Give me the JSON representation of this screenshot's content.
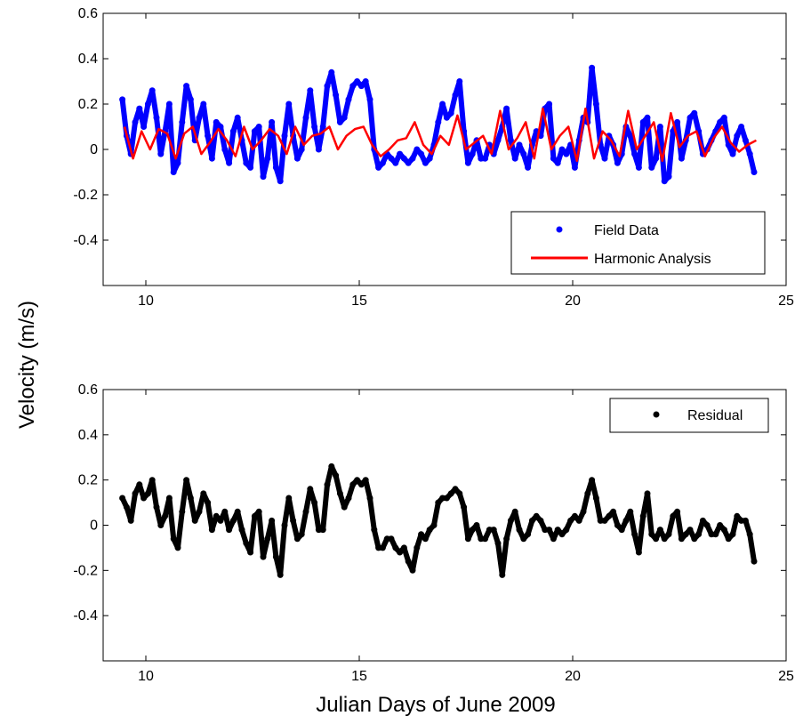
{
  "figure": {
    "ylabel": "Velocity (m/s)",
    "xlabel": "Julian Days of June 2009"
  },
  "chart_data": [
    {
      "type": "scatter",
      "xlim": [
        9,
        25
      ],
      "ylim": [
        -0.6,
        0.6
      ],
      "xticks": [
        10,
        15,
        20,
        25
      ],
      "yticks": [
        0.6,
        0.4,
        0.2,
        0,
        -0.2,
        -0.4
      ],
      "xtick_labels": [
        "10",
        "15",
        "20",
        "25"
      ],
      "ytick_labels": [
        "0.6",
        "0.4",
        "0.2",
        "0",
        "-0.2",
        "-0.4"
      ],
      "grid": false,
      "legend": "lower-right",
      "series": [
        {
          "name": "Field Data",
          "mode": "markers",
          "color": "#0000ff",
          "x": [
            9.45,
            9.55,
            9.65,
            9.75,
            9.85,
            9.95,
            10.05,
            10.15,
            10.25,
            10.35,
            10.45,
            10.55,
            10.65,
            10.75,
            10.85,
            10.95,
            11.05,
            11.15,
            11.25,
            11.35,
            11.45,
            11.55,
            11.65,
            11.75,
            11.85,
            11.95,
            12.05,
            12.15,
            12.25,
            12.35,
            12.45,
            12.55,
            12.65,
            12.75,
            12.85,
            12.95,
            13.05,
            13.15,
            13.25,
            13.35,
            13.45,
            13.55,
            13.65,
            13.75,
            13.85,
            13.95,
            14.05,
            14.15,
            14.25,
            14.35,
            14.45,
            14.55,
            14.65,
            14.75,
            14.85,
            14.95,
            15.05,
            15.15,
            15.25,
            15.35,
            15.45,
            15.55,
            15.65,
            15.75,
            15.85,
            15.95,
            16.05,
            16.15,
            16.25,
            16.35,
            16.45,
            16.55,
            16.65,
            16.75,
            16.85,
            16.95,
            17.05,
            17.15,
            17.25,
            17.35,
            17.45,
            17.55,
            17.65,
            17.75,
            17.85,
            17.95,
            18.05,
            18.15,
            18.25,
            18.35,
            18.45,
            18.55,
            18.65,
            18.75,
            18.85,
            18.95,
            19.05,
            19.15,
            19.25,
            19.35,
            19.45,
            19.55,
            19.65,
            19.75,
            19.85,
            19.95,
            20.05,
            20.15,
            20.25,
            20.35,
            20.45,
            20.55,
            20.65,
            20.75,
            20.85,
            20.95,
            21.05,
            21.15,
            21.25,
            21.35,
            21.45,
            21.55,
            21.65,
            21.75,
            21.85,
            21.95,
            22.05,
            22.15,
            22.25,
            22.35,
            22.45,
            22.55,
            22.65,
            22.75,
            22.85,
            22.95,
            23.05,
            23.15,
            23.25,
            23.35,
            23.45,
            23.55,
            23.65,
            23.75,
            23.85,
            23.95,
            24.05,
            24.15,
            24.25
          ],
          "y": [
            0.22,
            0.06,
            -0.02,
            0.12,
            0.18,
            0.1,
            0.2,
            0.26,
            0.14,
            -0.02,
            0.08,
            0.2,
            -0.1,
            -0.06,
            0.12,
            0.28,
            0.22,
            0.04,
            0.14,
            0.2,
            0.06,
            -0.04,
            0.12,
            0.1,
            0.0,
            -0.06,
            0.08,
            0.14,
            0.04,
            -0.06,
            -0.08,
            0.08,
            0.1,
            -0.12,
            -0.04,
            0.12,
            -0.08,
            -0.14,
            0.06,
            0.2,
            0.06,
            -0.04,
            0.0,
            0.14,
            0.26,
            0.1,
            0.0,
            0.1,
            0.28,
            0.34,
            0.24,
            0.12,
            0.14,
            0.22,
            0.28,
            0.3,
            0.28,
            0.3,
            0.22,
            0.0,
            -0.08,
            -0.06,
            -0.02,
            -0.04,
            -0.06,
            -0.02,
            -0.04,
            -0.06,
            -0.04,
            0.0,
            -0.02,
            -0.06,
            -0.04,
            0.02,
            0.12,
            0.2,
            0.14,
            0.16,
            0.24,
            0.3,
            0.08,
            -0.06,
            -0.02,
            0.04,
            -0.04,
            -0.04,
            0.02,
            -0.02,
            0.04,
            0.1,
            0.18,
            0.04,
            -0.04,
            0.02,
            -0.02,
            -0.08,
            0.02,
            0.08,
            0.06,
            0.18,
            0.2,
            -0.04,
            -0.06,
            0.0,
            -0.02,
            0.02,
            -0.08,
            0.04,
            0.14,
            0.12,
            0.36,
            0.2,
            0.02,
            -0.04,
            0.06,
            0.02,
            -0.06,
            -0.02,
            0.1,
            0.06,
            -0.02,
            -0.08,
            0.12,
            0.14,
            -0.08,
            -0.04,
            0.1,
            -0.14,
            -0.12,
            0.08,
            0.12,
            -0.04,
            0.04,
            0.14,
            0.16,
            0.08,
            -0.02,
            0.0,
            0.04,
            0.08,
            0.12,
            0.14,
            0.02,
            -0.02,
            0.06,
            0.1,
            0.04,
            -0.02,
            -0.1
          ]
        },
        {
          "name": "Harmonic Analysis",
          "mode": "line",
          "color": "#ff0000",
          "x": [
            9.5,
            9.7,
            9.9,
            10.1,
            10.3,
            10.5,
            10.7,
            10.9,
            11.1,
            11.3,
            11.5,
            11.7,
            11.9,
            12.1,
            12.3,
            12.5,
            12.7,
            12.9,
            13.1,
            13.3,
            13.5,
            13.7,
            13.9,
            14.1,
            14.3,
            14.5,
            14.7,
            14.9,
            15.1,
            15.3,
            15.5,
            15.7,
            15.9,
            16.1,
            16.3,
            16.5,
            16.7,
            16.9,
            17.1,
            17.3,
            17.5,
            17.7,
            17.9,
            18.1,
            18.3,
            18.5,
            18.7,
            18.9,
            19.1,
            19.3,
            19.5,
            19.7,
            19.9,
            20.1,
            20.3,
            20.5,
            20.7,
            20.9,
            21.1,
            21.3,
            21.5,
            21.7,
            21.9,
            22.1,
            22.3,
            22.5,
            22.7,
            22.9,
            23.1,
            23.3,
            23.5,
            23.7,
            23.9,
            24.1,
            24.3
          ],
          "y": [
            0.1,
            -0.04,
            0.08,
            0.0,
            0.09,
            0.07,
            -0.04,
            0.07,
            0.1,
            -0.02,
            0.03,
            0.09,
            0.04,
            -0.03,
            0.1,
            0.0,
            0.04,
            0.09,
            0.06,
            -0.02,
            0.1,
            0.02,
            0.06,
            0.07,
            0.1,
            0.0,
            0.06,
            0.09,
            0.1,
            0.02,
            -0.03,
            0.0,
            0.04,
            0.05,
            0.12,
            0.02,
            -0.02,
            0.06,
            0.02,
            0.15,
            0.0,
            0.03,
            0.06,
            -0.02,
            0.17,
            0.0,
            0.05,
            0.12,
            -0.04,
            0.18,
            0.0,
            0.06,
            0.1,
            -0.05,
            0.18,
            -0.04,
            0.08,
            0.04,
            -0.03,
            0.17,
            0.0,
            0.06,
            0.12,
            -0.05,
            0.16,
            0.01,
            0.06,
            0.08,
            -0.03,
            0.05,
            0.1,
            0.03,
            -0.01,
            0.02,
            0.04
          ]
        }
      ]
    },
    {
      "type": "scatter",
      "xlim": [
        9,
        25
      ],
      "ylim": [
        -0.6,
        0.6
      ],
      "xticks": [
        10,
        15,
        20,
        25
      ],
      "yticks": [
        0.6,
        0.4,
        0.2,
        0,
        -0.2,
        -0.4
      ],
      "xtick_labels": [
        "10",
        "15",
        "20",
        "25"
      ],
      "ytick_labels": [
        "0.6",
        "0.4",
        "0.2",
        "0",
        "-0.2",
        "-0.4"
      ],
      "grid": false,
      "legend": "top-right",
      "series": [
        {
          "name": "Residual",
          "mode": "markers",
          "color": "#000000",
          "x": [
            9.45,
            9.55,
            9.65,
            9.75,
            9.85,
            9.95,
            10.05,
            10.15,
            10.25,
            10.35,
            10.45,
            10.55,
            10.65,
            10.75,
            10.85,
            10.95,
            11.05,
            11.15,
            11.25,
            11.35,
            11.45,
            11.55,
            11.65,
            11.75,
            11.85,
            11.95,
            12.05,
            12.15,
            12.25,
            12.35,
            12.45,
            12.55,
            12.65,
            12.75,
            12.85,
            12.95,
            13.05,
            13.15,
            13.25,
            13.35,
            13.45,
            13.55,
            13.65,
            13.75,
            13.85,
            13.95,
            14.05,
            14.15,
            14.25,
            14.35,
            14.45,
            14.55,
            14.65,
            14.75,
            14.85,
            14.95,
            15.05,
            15.15,
            15.25,
            15.35,
            15.45,
            15.55,
            15.65,
            15.75,
            15.85,
            15.95,
            16.05,
            16.15,
            16.25,
            16.35,
            16.45,
            16.55,
            16.65,
            16.75,
            16.85,
            16.95,
            17.05,
            17.15,
            17.25,
            17.35,
            17.45,
            17.55,
            17.65,
            17.75,
            17.85,
            17.95,
            18.05,
            18.15,
            18.25,
            18.35,
            18.45,
            18.55,
            18.65,
            18.75,
            18.85,
            18.95,
            19.05,
            19.15,
            19.25,
            19.35,
            19.45,
            19.55,
            19.65,
            19.75,
            19.85,
            19.95,
            20.05,
            20.15,
            20.25,
            20.35,
            20.45,
            20.55,
            20.65,
            20.75,
            20.85,
            20.95,
            21.05,
            21.15,
            21.25,
            21.35,
            21.45,
            21.55,
            21.65,
            21.75,
            21.85,
            21.95,
            22.05,
            22.15,
            22.25,
            22.35,
            22.45,
            22.55,
            22.65,
            22.75,
            22.85,
            22.95,
            23.05,
            23.15,
            23.25,
            23.35,
            23.45,
            23.55,
            23.65,
            23.75,
            23.85,
            23.95,
            24.05,
            24.15,
            24.25
          ],
          "y": [
            0.12,
            0.08,
            0.02,
            0.14,
            0.18,
            0.12,
            0.14,
            0.2,
            0.08,
            0.0,
            0.04,
            0.12,
            -0.06,
            -0.1,
            0.06,
            0.2,
            0.12,
            0.02,
            0.06,
            0.14,
            0.1,
            -0.02,
            0.04,
            0.02,
            0.06,
            -0.02,
            0.02,
            0.06,
            -0.02,
            -0.08,
            -0.12,
            0.04,
            0.06,
            -0.14,
            -0.06,
            0.02,
            -0.14,
            -0.22,
            0.0,
            0.12,
            0.02,
            -0.06,
            -0.04,
            0.06,
            0.16,
            0.1,
            -0.02,
            -0.02,
            0.18,
            0.26,
            0.22,
            0.14,
            0.08,
            0.12,
            0.18,
            0.2,
            0.18,
            0.2,
            0.12,
            -0.02,
            -0.1,
            -0.1,
            -0.06,
            -0.06,
            -0.1,
            -0.12,
            -0.1,
            -0.16,
            -0.2,
            -0.1,
            -0.04,
            -0.06,
            -0.02,
            0.0,
            0.1,
            0.12,
            0.12,
            0.14,
            0.16,
            0.14,
            0.08,
            -0.06,
            -0.02,
            0.0,
            -0.06,
            -0.06,
            -0.02,
            -0.02,
            -0.08,
            -0.22,
            -0.06,
            0.02,
            0.06,
            -0.02,
            -0.06,
            -0.04,
            0.02,
            0.04,
            0.02,
            -0.02,
            -0.02,
            -0.06,
            -0.02,
            -0.04,
            -0.02,
            0.02,
            0.04,
            0.02,
            0.06,
            0.14,
            0.2,
            0.12,
            0.02,
            0.02,
            0.04,
            0.06,
            0.0,
            -0.02,
            0.02,
            0.06,
            -0.04,
            -0.12,
            0.04,
            0.14,
            -0.04,
            -0.06,
            -0.02,
            -0.06,
            -0.04,
            0.04,
            0.06,
            -0.06,
            -0.04,
            -0.02,
            -0.06,
            -0.04,
            0.02,
            0.0,
            -0.04,
            -0.04,
            0.0,
            -0.02,
            -0.06,
            -0.04,
            0.04,
            0.02,
            0.02,
            -0.04,
            -0.16
          ]
        }
      ]
    }
  ]
}
